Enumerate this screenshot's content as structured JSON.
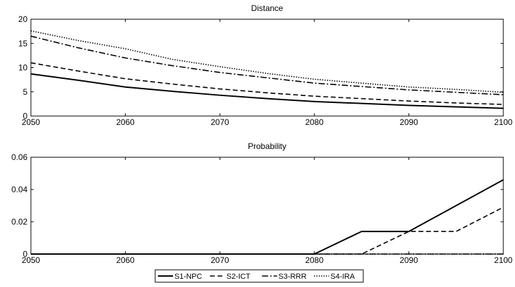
{
  "chart_data": [
    {
      "type": "line",
      "title": "Distance",
      "xlabel": "",
      "ylabel": "",
      "x": [
        2050,
        2055,
        2060,
        2065,
        2070,
        2075,
        2080,
        2085,
        2090,
        2095,
        2100
      ],
      "xlim": [
        2050,
        2100
      ],
      "ylim": [
        0,
        20
      ],
      "xticks": [
        2050,
        2060,
        2070,
        2080,
        2090,
        2100
      ],
      "yticks": [
        0,
        5,
        10,
        15,
        20
      ],
      "xtick_labels": [
        "2050",
        "2060",
        "2070",
        "2080",
        "2090",
        "2100"
      ],
      "ytick_labels": [
        "0",
        "5",
        "10",
        "15",
        "20"
      ],
      "grid": false,
      "series": [
        {
          "name": "S1-NPC",
          "dash": "solid",
          "values": [
            8.7,
            7.4,
            6.0,
            5.1,
            4.3,
            3.6,
            3.0,
            2.6,
            2.2,
            1.9,
            1.6
          ]
        },
        {
          "name": "S2-ICT",
          "dash": "dashed",
          "values": [
            11.0,
            9.3,
            7.7,
            6.6,
            5.6,
            4.8,
            4.1,
            3.6,
            3.1,
            2.7,
            2.4
          ]
        },
        {
          "name": "S3-RRR",
          "dash": "dashdot",
          "values": [
            16.5,
            14.1,
            12.0,
            10.4,
            9.0,
            7.9,
            6.8,
            6.1,
            5.4,
            4.9,
            4.4
          ]
        },
        {
          "name": "S4-IRA",
          "dash": "dotted",
          "values": [
            17.6,
            15.6,
            13.9,
            11.7,
            10.2,
            8.8,
            7.6,
            6.8,
            6.0,
            5.5,
            4.9
          ]
        }
      ]
    },
    {
      "type": "line",
      "title": "Probability",
      "xlabel": "",
      "ylabel": "",
      "x": [
        2050,
        2055,
        2060,
        2065,
        2070,
        2075,
        2080,
        2085,
        2090,
        2095,
        2100
      ],
      "xlim": [
        2050,
        2100
      ],
      "ylim": [
        0,
        0.06
      ],
      "xticks": [
        2050,
        2060,
        2070,
        2080,
        2090,
        2100
      ],
      "yticks": [
        0,
        0.02,
        0.04,
        0.06
      ],
      "xtick_labels": [
        "2050",
        "2060",
        "2070",
        "2080",
        "2090",
        "2100"
      ],
      "ytick_labels": [
        "0",
        "0.02",
        "0.04",
        "0.06"
      ],
      "grid": false,
      "series": [
        {
          "name": "S1-NPC",
          "dash": "solid",
          "values": [
            0,
            0,
            0,
            0,
            0,
            0,
            0,
            0.014,
            0.014,
            0.03,
            0.046
          ]
        },
        {
          "name": "S2-ICT",
          "dash": "dashed",
          "values": [
            0,
            0,
            0,
            0,
            0,
            0,
            0,
            0,
            0.014,
            0.014,
            0.029
          ]
        },
        {
          "name": "S3-RRR",
          "dash": "dashdot",
          "values": [
            0,
            0,
            0,
            0,
            0,
            0,
            0,
            0,
            0,
            0,
            0
          ]
        },
        {
          "name": "S4-IRA",
          "dash": "dotted",
          "values": [
            0,
            0,
            0,
            0,
            0,
            0,
            0,
            0,
            0,
            0,
            0
          ]
        }
      ]
    }
  ],
  "legend": {
    "placement": "bottom-center",
    "entries": [
      "S1-NPC",
      "S2-ICT",
      "S3-RRR",
      "S4-IRA"
    ]
  }
}
